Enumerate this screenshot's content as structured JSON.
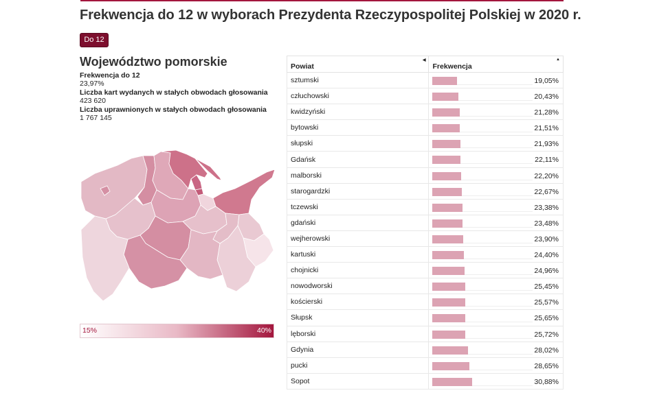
{
  "page": {
    "title": "Frekwencja do 12 w wyborach Prezydenta Rzeczypospolitej Polskiej w 2020 r.",
    "tab_label": "Do 12"
  },
  "region": {
    "name": "Województwo pomorskie",
    "turnout_label": "Frekwencja do 12",
    "turnout_value": "23,97%",
    "cards_label": "Liczba kart wydanych w stałych obwodach głosowania",
    "cards_value": "423 620",
    "eligible_label": "Liczba uprawnionych w stałych obwodach głosowania",
    "eligible_value": "1 767 145"
  },
  "legend": {
    "min": "15%",
    "max": "40%"
  },
  "colors": {
    "accent": "#a3163d",
    "tab_bg": "#7d0f2e",
    "bar": "#dca3b3"
  },
  "table": {
    "col_county": "Powiat",
    "col_turnout": "Frekwencja",
    "rows": [
      {
        "name": "sztumski",
        "value": "19,05%",
        "pct": 19.05
      },
      {
        "name": "człuchowski",
        "value": "20,43%",
        "pct": 20.43
      },
      {
        "name": "kwidzyński",
        "value": "21,28%",
        "pct": 21.28
      },
      {
        "name": "bytowski",
        "value": "21,51%",
        "pct": 21.51
      },
      {
        "name": "słupski",
        "value": "21,93%",
        "pct": 21.93
      },
      {
        "name": "Gdańsk",
        "value": "22,11%",
        "pct": 22.11
      },
      {
        "name": "malborski",
        "value": "22,20%",
        "pct": 22.2
      },
      {
        "name": "starogardzki",
        "value": "22,67%",
        "pct": 22.67
      },
      {
        "name": "tczewski",
        "value": "23,38%",
        "pct": 23.38
      },
      {
        "name": "gdański",
        "value": "23,48%",
        "pct": 23.48
      },
      {
        "name": "wejherowski",
        "value": "23,90%",
        "pct": 23.9
      },
      {
        "name": "kartuski",
        "value": "24,40%",
        "pct": 24.4
      },
      {
        "name": "chojnicki",
        "value": "24,96%",
        "pct": 24.96
      },
      {
        "name": "nowodworski",
        "value": "25,45%",
        "pct": 25.45
      },
      {
        "name": "kościerski",
        "value": "25,57%",
        "pct": 25.57
      },
      {
        "name": "Słupsk",
        "value": "25,65%",
        "pct": 25.65
      },
      {
        "name": "lęborski",
        "value": "25,72%",
        "pct": 25.72
      },
      {
        "name": "Gdynia",
        "value": "28,02%",
        "pct": 28.02
      },
      {
        "name": "pucki",
        "value": "28,65%",
        "pct": 28.65
      },
      {
        "name": "Sopot",
        "value": "30,88%",
        "pct": 30.88
      }
    ]
  }
}
